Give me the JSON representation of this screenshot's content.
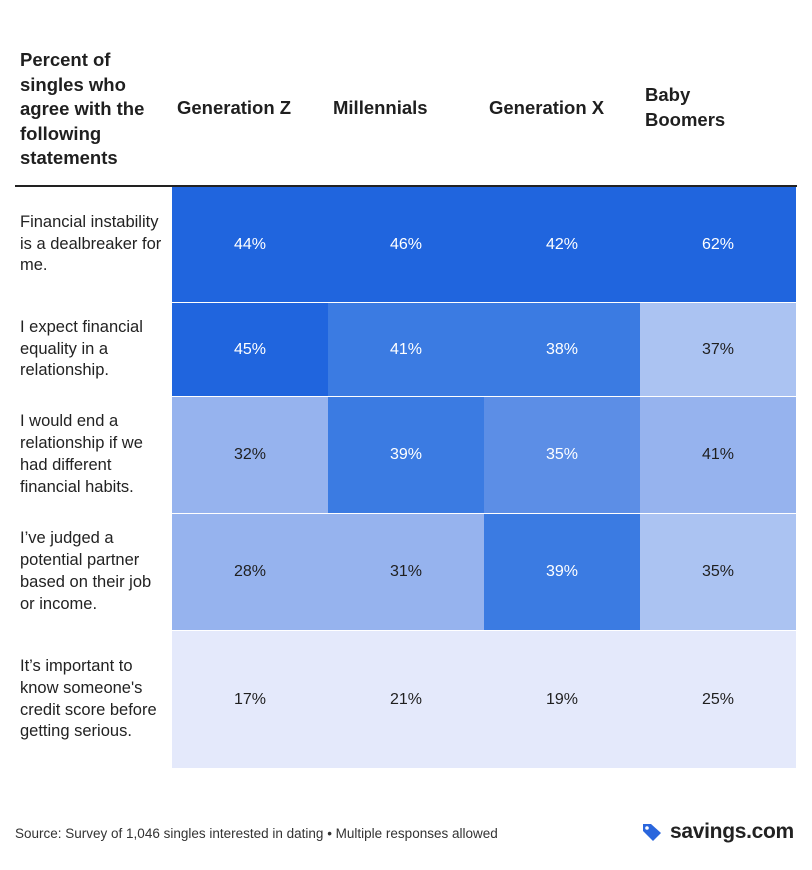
{
  "chart_data": {
    "type": "heatmap",
    "title": "Percent of singles who agree with the following statements",
    "columns": [
      "Generation Z",
      "Millennials",
      "Generation X",
      "Baby Boomers"
    ],
    "rows": [
      {
        "label": "Financial instability is a dealbreaker for me.",
        "values": [
          44,
          46,
          42,
          62
        ]
      },
      {
        "label": "I expect financial equality in a relationship.",
        "values": [
          45,
          41,
          38,
          37
        ]
      },
      {
        "label": "I would end a relationship if we had different financial habits.",
        "values": [
          32,
          39,
          35,
          41
        ]
      },
      {
        "label": "I’ve judged a potential partner based on their job or income.",
        "values": [
          28,
          31,
          39,
          35
        ]
      },
      {
        "label": "It’s important to know someone's credit score before getting serious.",
        "values": [
          17,
          21,
          19,
          25
        ]
      }
    ],
    "value_suffix": "%",
    "colors": {
      "high": "#2065de",
      "mid_high": "#3b7be2",
      "mid": "#5c8ee6",
      "low": "#96b3ee",
      "lighter": "#abc3f2",
      "lowest": "#e4e9fb"
    }
  },
  "footer": {
    "source": "Source: Survey of 1,046 singles interested in dating • Multiple responses allowed",
    "brand": "savings.com"
  },
  "brand_color": "#2a66dd"
}
